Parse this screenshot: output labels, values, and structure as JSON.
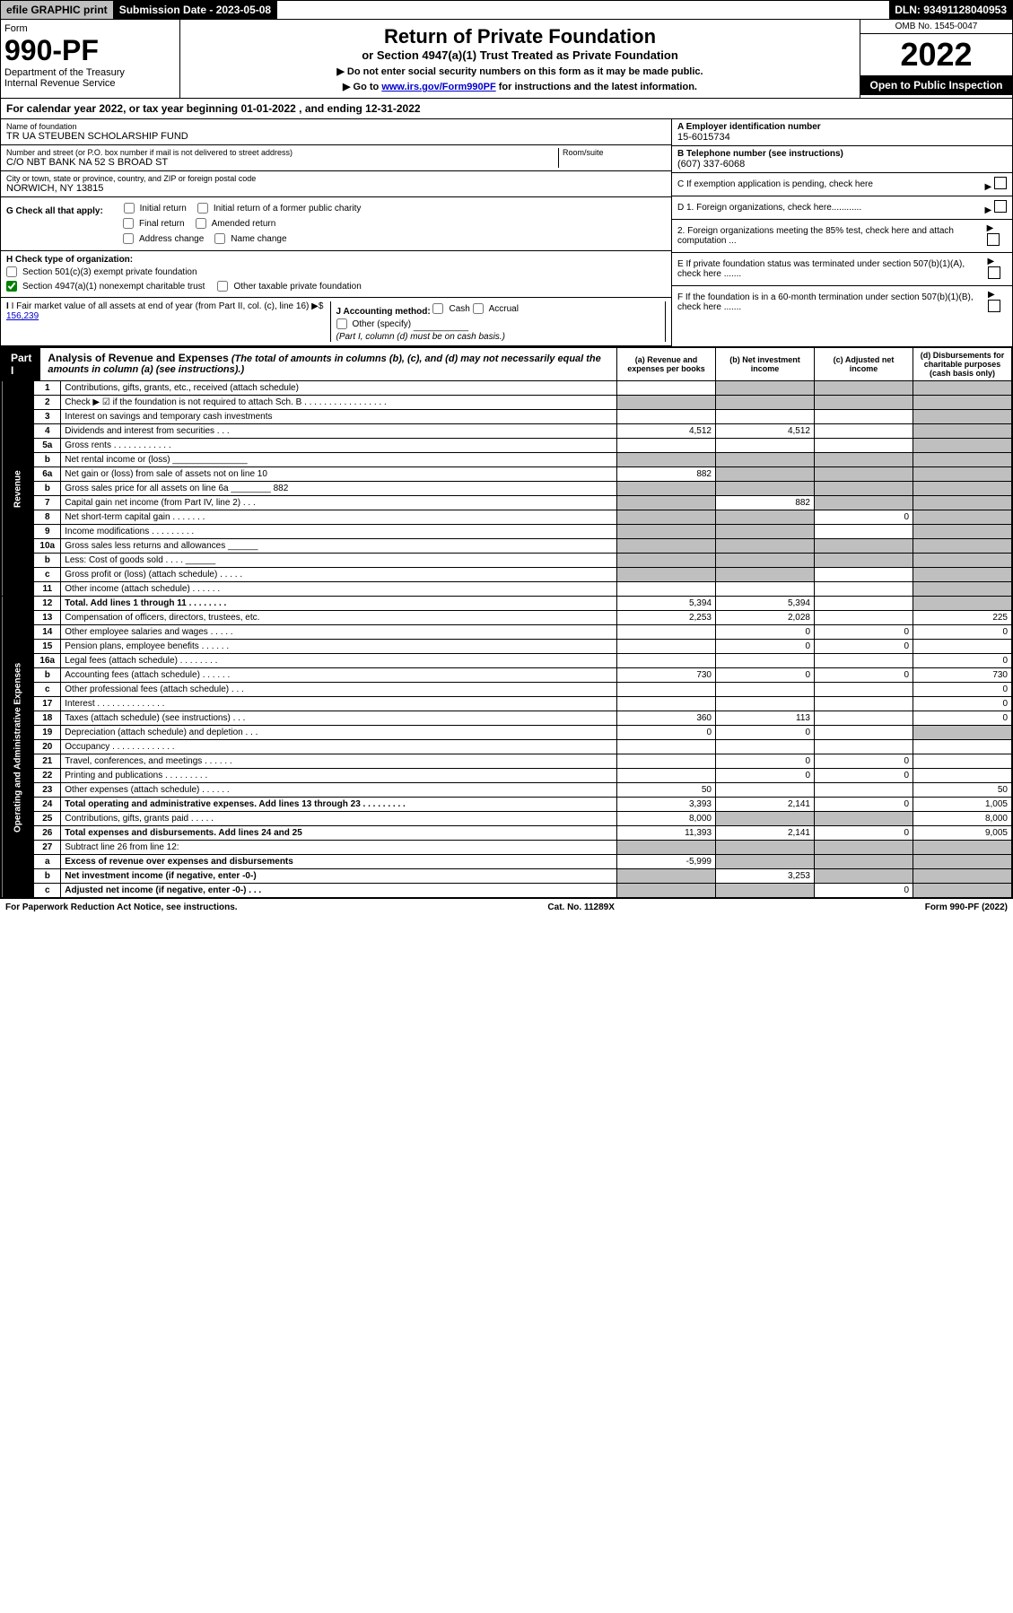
{
  "topbar": {
    "efile": "efile GRAPHIC print",
    "submission": "Submission Date - 2023-05-08",
    "dln": "DLN: 93491128040953"
  },
  "header": {
    "form_label": "Form",
    "form_number": "990-PF",
    "dept": "Department of the Treasury",
    "irs": "Internal Revenue Service",
    "title": "Return of Private Foundation",
    "subtitle": "or Section 4947(a)(1) Trust Treated as Private Foundation",
    "note1": "▶ Do not enter social security numbers on this form as it may be made public.",
    "note2_pre": "▶ Go to ",
    "note2_link": "www.irs.gov/Form990PF",
    "note2_post": " for instructions and the latest information.",
    "omb": "OMB No. 1545-0047",
    "year": "2022",
    "open": "Open to Public Inspection"
  },
  "cal": "For calendar year 2022, or tax year beginning 01-01-2022                          , and ending 12-31-2022",
  "info": {
    "name_label": "Name of foundation",
    "name": "TR UA STEUBEN SCHOLARSHIP FUND",
    "addr_label": "Number and street (or P.O. box number if mail is not delivered to street address)",
    "addr": "C/O NBT BANK NA 52 S BROAD ST",
    "room_label": "Room/suite",
    "city_label": "City or town, state or province, country, and ZIP or foreign postal code",
    "city": "NORWICH, NY  13815",
    "ein_label": "A Employer identification number",
    "ein": "15-6015734",
    "tel_label": "B Telephone number (see instructions)",
    "tel": "(607) 337-6068",
    "c": "C If exemption application is pending, check here",
    "d1": "D 1. Foreign organizations, check here............",
    "d2": "2. Foreign organizations meeting the 85% test, check here and attach computation ...",
    "e": "E If private foundation status was terminated under section 507(b)(1)(A), check here .......",
    "f": "F If the foundation is in a 60-month termination under section 507(b)(1)(B), check here .......",
    "g_label": "G Check all that apply:",
    "g_opts": [
      "Initial return",
      "Initial return of a former public charity",
      "Final return",
      "Amended return",
      "Address change",
      "Name change"
    ],
    "h_label": "H Check type of organization:",
    "h_opts": [
      "Section 501(c)(3) exempt private foundation",
      "Section 4947(a)(1) nonexempt charitable trust",
      "Other taxable private foundation"
    ],
    "h_checked": 1,
    "i_label": "I Fair market value of all assets at end of year (from Part II, col. (c), line 16)",
    "i_val": "156,239",
    "j_label": "J Accounting method:",
    "j_opts": [
      "Cash",
      "Accrual",
      "Other (specify)"
    ],
    "j_note": "(Part I, column (d) must be on cash basis.)"
  },
  "part1": {
    "badge": "Part I",
    "title": "Analysis of Revenue and Expenses",
    "title_note": "(The total of amounts in columns (b), (c), and (d) may not necessarily equal the amounts in column (a) (see instructions).)",
    "cols": [
      "(a) Revenue and expenses per books",
      "(b) Net investment income",
      "(c) Adjusted net income",
      "(d) Disbursements for charitable purposes (cash basis only)"
    ],
    "side_rev": "Revenue",
    "side_exp": "Operating and Administrative Expenses"
  },
  "rows": [
    {
      "n": "1",
      "d": "Contributions, gifts, grants, etc., received (attach schedule)",
      "a": "",
      "b": "shade",
      "c": "shade",
      "dd": "shade"
    },
    {
      "n": "2",
      "d": "Check ▶ ☑ if the foundation is not required to attach Sch. B  .  .  .  .  .  .  .  .  .  .  .  .  .  .  .  .  .",
      "a": "shade",
      "b": "shade",
      "c": "shade",
      "dd": "shade"
    },
    {
      "n": "3",
      "d": "Interest on savings and temporary cash investments",
      "a": "",
      "b": "",
      "c": "",
      "dd": "shade"
    },
    {
      "n": "4",
      "d": "Dividends and interest from securities  .  .  .",
      "a": "4,512",
      "b": "4,512",
      "c": "",
      "dd": "shade"
    },
    {
      "n": "5a",
      "d": "Gross rents  .  .  .  .  .  .  .  .  .  .  .  .",
      "a": "",
      "b": "",
      "c": "",
      "dd": "shade"
    },
    {
      "n": "b",
      "d": "Net rental income or (loss)  _______________",
      "a": "shade",
      "b": "shade",
      "c": "shade",
      "dd": "shade"
    },
    {
      "n": "6a",
      "d": "Net gain or (loss) from sale of assets not on line 10",
      "a": "882",
      "b": "shade",
      "c": "shade",
      "dd": "shade"
    },
    {
      "n": "b",
      "d": "Gross sales price for all assets on line 6a ________ 882",
      "a": "shade",
      "b": "shade",
      "c": "shade",
      "dd": "shade"
    },
    {
      "n": "7",
      "d": "Capital gain net income (from Part IV, line 2)  .  .  .",
      "a": "shade",
      "b": "882",
      "c": "shade",
      "dd": "shade"
    },
    {
      "n": "8",
      "d": "Net short-term capital gain  .  .  .  .  .  .  .",
      "a": "shade",
      "b": "shade",
      "c": "0",
      "dd": "shade"
    },
    {
      "n": "9",
      "d": "Income modifications  .  .  .  .  .  .  .  .  .",
      "a": "shade",
      "b": "shade",
      "c": "",
      "dd": "shade"
    },
    {
      "n": "10a",
      "d": "Gross sales less returns and allowances  ______",
      "a": "shade",
      "b": "shade",
      "c": "shade",
      "dd": "shade"
    },
    {
      "n": "b",
      "d": "Less: Cost of goods sold  .  .  .  .  ______",
      "a": "shade",
      "b": "shade",
      "c": "shade",
      "dd": "shade"
    },
    {
      "n": "c",
      "d": "Gross profit or (loss) (attach schedule)  .  .  .  .  .",
      "a": "shade",
      "b": "shade",
      "c": "",
      "dd": "shade"
    },
    {
      "n": "11",
      "d": "Other income (attach schedule)  .  .  .  .  .  .",
      "a": "",
      "b": "",
      "c": "",
      "dd": "shade"
    },
    {
      "n": "12",
      "d": "Total. Add lines 1 through 11  .  .  .  .  .  .  .  .",
      "a": "5,394",
      "b": "5,394",
      "c": "",
      "dd": "shade",
      "bold": true
    },
    {
      "n": "13",
      "d": "Compensation of officers, directors, trustees, etc.",
      "a": "2,253",
      "b": "2,028",
      "c": "",
      "dd": "225"
    },
    {
      "n": "14",
      "d": "Other employee salaries and wages  .  .  .  .  .",
      "a": "",
      "b": "0",
      "c": "0",
      "dd": "0"
    },
    {
      "n": "15",
      "d": "Pension plans, employee benefits  .  .  .  .  .  .",
      "a": "",
      "b": "0",
      "c": "0",
      "dd": ""
    },
    {
      "n": "16a",
      "d": "Legal fees (attach schedule)  .  .  .  .  .  .  .  .",
      "a": "",
      "b": "",
      "c": "",
      "dd": "0"
    },
    {
      "n": "b",
      "d": "Accounting fees (attach schedule)  .  .  .  .  .  .",
      "a": "730",
      "b": "0",
      "c": "0",
      "dd": "730"
    },
    {
      "n": "c",
      "d": "Other professional fees (attach schedule)  .  .  .",
      "a": "",
      "b": "",
      "c": "",
      "dd": "0"
    },
    {
      "n": "17",
      "d": "Interest  .  .  .  .  .  .  .  .  .  .  .  .  .  .",
      "a": "",
      "b": "",
      "c": "",
      "dd": "0"
    },
    {
      "n": "18",
      "d": "Taxes (attach schedule) (see instructions)  .  .  .",
      "a": "360",
      "b": "113",
      "c": "",
      "dd": "0"
    },
    {
      "n": "19",
      "d": "Depreciation (attach schedule) and depletion  .  .  .",
      "a": "0",
      "b": "0",
      "c": "",
      "dd": "shade"
    },
    {
      "n": "20",
      "d": "Occupancy  .  .  .  .  .  .  .  .  .  .  .  .  .",
      "a": "",
      "b": "",
      "c": "",
      "dd": ""
    },
    {
      "n": "21",
      "d": "Travel, conferences, and meetings  .  .  .  .  .  .",
      "a": "",
      "b": "0",
      "c": "0",
      "dd": ""
    },
    {
      "n": "22",
      "d": "Printing and publications  .  .  .  .  .  .  .  .  .",
      "a": "",
      "b": "0",
      "c": "0",
      "dd": ""
    },
    {
      "n": "23",
      "d": "Other expenses (attach schedule)  .  .  .  .  .  .",
      "a": "50",
      "b": "",
      "c": "",
      "dd": "50"
    },
    {
      "n": "24",
      "d": "Total operating and administrative expenses. Add lines 13 through 23  .  .  .  .  .  .  .  .  .",
      "a": "3,393",
      "b": "2,141",
      "c": "0",
      "dd": "1,005",
      "bold": true
    },
    {
      "n": "25",
      "d": "Contributions, gifts, grants paid  .  .  .  .  .",
      "a": "8,000",
      "b": "shade",
      "c": "shade",
      "dd": "8,000"
    },
    {
      "n": "26",
      "d": "Total expenses and disbursements. Add lines 24 and 25",
      "a": "11,393",
      "b": "2,141",
      "c": "0",
      "dd": "9,005",
      "bold": true
    },
    {
      "n": "27",
      "d": "Subtract line 26 from line 12:",
      "a": "shade",
      "b": "shade",
      "c": "shade",
      "dd": "shade"
    },
    {
      "n": "a",
      "d": "Excess of revenue over expenses and disbursements",
      "a": "-5,999",
      "b": "shade",
      "c": "shade",
      "dd": "shade",
      "bold": true
    },
    {
      "n": "b",
      "d": "Net investment income (if negative, enter -0-)",
      "a": "shade",
      "b": "3,253",
      "c": "shade",
      "dd": "shade",
      "bold": true
    },
    {
      "n": "c",
      "d": "Adjusted net income (if negative, enter -0-)  .  .  .",
      "a": "shade",
      "b": "shade",
      "c": "0",
      "dd": "shade",
      "bold": true
    }
  ],
  "footer": {
    "left": "For Paperwork Reduction Act Notice, see instructions.",
    "mid": "Cat. No. 11289X",
    "right": "Form 990-PF (2022)"
  }
}
